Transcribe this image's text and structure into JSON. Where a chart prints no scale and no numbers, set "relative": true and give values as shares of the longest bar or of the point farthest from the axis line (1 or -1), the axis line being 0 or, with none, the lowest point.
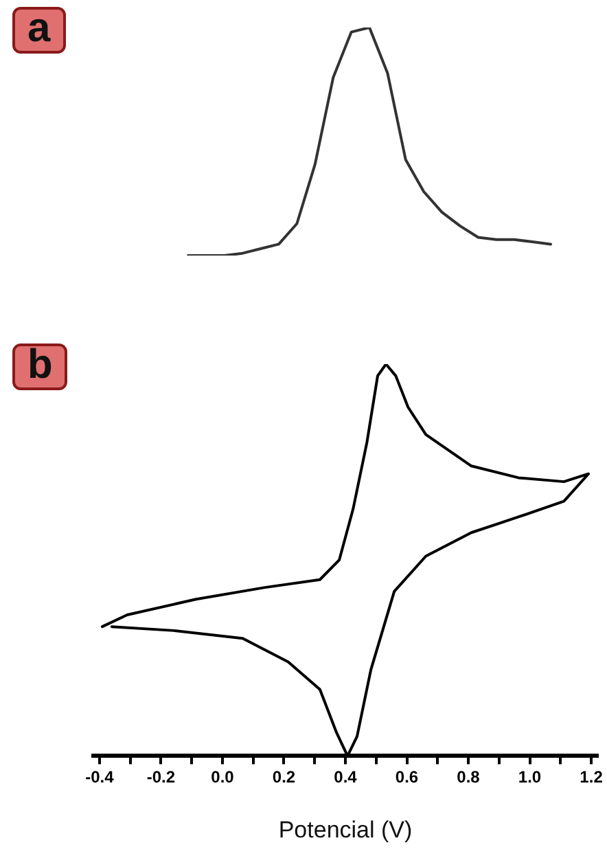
{
  "chart_data": [
    {
      "type": "line",
      "title": "a",
      "relative": true,
      "tick_labels": false,
      "legend": false,
      "grid": false,
      "marker": "none",
      "line_style": "solid",
      "categories": [
        null,
        null,
        null,
        null,
        null,
        null,
        null,
        null,
        null,
        null,
        null,
        null,
        null,
        null,
        null,
        null,
        null,
        null,
        null,
        null,
        null
      ],
      "series": [
        {
          "color": "#333333",
          "values": [
            0,
            0,
            0,
            0.01,
            0.03,
            0.05,
            0.14,
            0.4,
            0.78,
            0.98,
            1,
            0.8,
            0.42,
            0.28,
            0.19,
            0.13,
            0.08,
            0.07,
            0.07,
            0.06,
            0.05
          ]
        }
      ]
    },
    {
      "type": "line",
      "title": "b",
      "xlabel": "Potencial (V)",
      "relative": true,
      "tick_labels": "x",
      "legend": false,
      "grid": false,
      "marker": "none",
      "line_style": "solid",
      "xlim": [
        -0.42,
        1.22
      ],
      "xticks": [
        -0.4,
        {
          "value": -0.3,
          "label": null
        },
        -0.2,
        {
          "value": -0.1,
          "label": null
        },
        {
          "value": 0,
          "label": "0.0"
        },
        {
          "value": 0.1,
          "label": null
        },
        0.2,
        {
          "value": 0.3,
          "label": null
        },
        0.4,
        {
          "value": 0.5,
          "label": null
        },
        0.6,
        {
          "value": 0.7,
          "label": null
        },
        0.8,
        {
          "value": 0.9,
          "label": null
        },
        {
          "value": 1,
          "label": "1.0"
        },
        {
          "value": 1.1,
          "label": null
        },
        1.2
      ],
      "series": [
        {
          "color": "#000000",
          "x": [
            -0.36,
            -0.158,
            0.066,
            0.214,
            0.317,
            0.371,
            0.407,
            0.438,
            0.483,
            0.559,
            0.662,
            0.81,
            0.963,
            1.111,
            1.191,
            1.111,
            0.963,
            0.81,
            0.662,
            0.604,
            0.564,
            0.532,
            0.505,
            0.47,
            0.425,
            0.38,
            0.317,
            0.138,
            -0.086,
            -0.31,
            -0.391
          ],
          "values": [
            0.33,
            0.32,
            0.3,
            0.24,
            0.17,
            0.06,
            0,
            0.05,
            0.22,
            0.42,
            0.51,
            0.57,
            0.61,
            0.65,
            0.72,
            0.7,
            0.71,
            0.74,
            0.82,
            0.89,
            0.97,
            1,
            0.97,
            0.8,
            0.63,
            0.5,
            0.45,
            0.43,
            0.4,
            0.36,
            0.33
          ]
        }
      ]
    }
  ]
}
